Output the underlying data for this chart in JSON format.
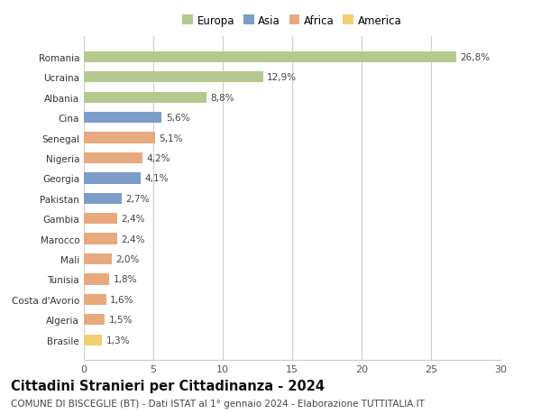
{
  "categories": [
    "Romania",
    "Ucraina",
    "Albania",
    "Cina",
    "Senegal",
    "Nigeria",
    "Georgia",
    "Pakistan",
    "Gambia",
    "Marocco",
    "Mali",
    "Tunisia",
    "Costa d'Avorio",
    "Algeria",
    "Brasile"
  ],
  "values": [
    26.8,
    12.9,
    8.8,
    5.6,
    5.1,
    4.2,
    4.1,
    2.7,
    2.4,
    2.4,
    2.0,
    1.8,
    1.6,
    1.5,
    1.3
  ],
  "labels": [
    "26,8%",
    "12,9%",
    "8,8%",
    "5,6%",
    "5,1%",
    "4,2%",
    "4,1%",
    "2,7%",
    "2,4%",
    "2,4%",
    "2,0%",
    "1,8%",
    "1,6%",
    "1,5%",
    "1,3%"
  ],
  "continents": [
    "Europa",
    "Europa",
    "Europa",
    "Asia",
    "Africa",
    "Africa",
    "Asia",
    "Asia",
    "Africa",
    "Africa",
    "Africa",
    "Africa",
    "Africa",
    "Africa",
    "America"
  ],
  "continent_colors": {
    "Europa": "#b5c98e",
    "Asia": "#7b9dc9",
    "Africa": "#e8a97e",
    "America": "#f0d070"
  },
  "legend_order": [
    "Europa",
    "Asia",
    "Africa",
    "America"
  ],
  "xlim": [
    0,
    30
  ],
  "xticks": [
    0,
    5,
    10,
    15,
    20,
    25,
    30
  ],
  "title": "Cittadini Stranieri per Cittadinanza - 2024",
  "subtitle": "COMUNE DI BISCEGLIE (BT) - Dati ISTAT al 1° gennaio 2024 - Elaborazione TUTTITALIA.IT",
  "title_fontsize": 10.5,
  "subtitle_fontsize": 7.5,
  "bar_height": 0.55,
  "background_color": "#ffffff",
  "grid_color": "#cccccc",
  "label_fontsize": 7.5,
  "ytick_fontsize": 7.5,
  "xtick_fontsize": 8
}
